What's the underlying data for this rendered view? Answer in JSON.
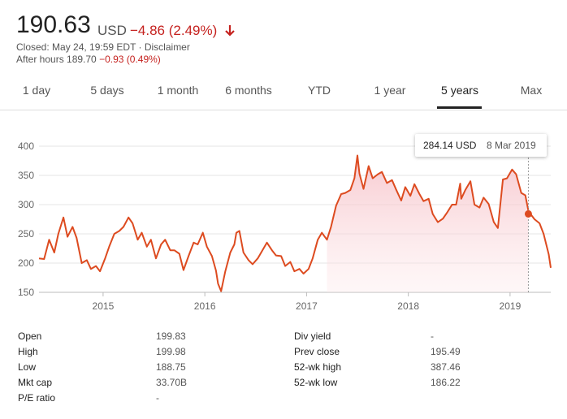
{
  "header": {
    "price": "190.63",
    "currency": "USD",
    "change": "−4.86 (2.49%)",
    "closed": "Closed: May 24, 19:59 EDT · Disclaimer",
    "after_hours_label": "After hours 189.70",
    "after_hours_change": "−0.93 (0.49%)"
  },
  "tabs": [
    {
      "label": "1 day"
    },
    {
      "label": "5 days"
    },
    {
      "label": "1 month"
    },
    {
      "label": "6 months"
    },
    {
      "label": "YTD"
    },
    {
      "label": "1 year"
    },
    {
      "label": "5 years",
      "active": true
    },
    {
      "label": "Max"
    }
  ],
  "tooltip": {
    "price": "284.14 USD",
    "date": "8 Mar 2019"
  },
  "chart_data": {
    "type": "area",
    "x_range": [
      2014.37,
      2019.4
    ],
    "ylim": [
      150,
      400
    ],
    "y_ticks": [
      "400",
      "350",
      "300",
      "250",
      "200",
      "150"
    ],
    "x_ticks": [
      "2015",
      "2016",
      "2017",
      "2018",
      "2019"
    ],
    "x_tick_values": [
      2015,
      2016,
      2017,
      2018,
      2019
    ],
    "grid": true,
    "color": "#dd4b20",
    "highlight": {
      "x": 2019.18,
      "y": 284.14
    },
    "series": [
      {
        "x": [
          2014.37,
          2014.42,
          2014.47,
          2014.52,
          2014.56,
          2014.61,
          2014.65,
          2014.7,
          2014.74,
          2014.79,
          2014.84,
          2014.88,
          2014.93,
          2014.97,
          2015.02,
          2015.06,
          2015.11,
          2015.16,
          2015.2,
          2015.25,
          2015.29,
          2015.34,
          2015.38,
          2015.43,
          2015.47,
          2015.52,
          2015.57,
          2015.61,
          2015.66,
          2015.7,
          2015.75,
          2015.79,
          2015.84,
          2015.89,
          2015.93,
          2015.98,
          2016.02,
          2016.07,
          2016.11,
          2016.13,
          2016.16,
          2016.2,
          2016.25,
          2016.29,
          2016.31,
          2016.34,
          2016.38,
          2016.43,
          2016.47,
          2016.52,
          2016.56,
          2016.61,
          2016.66,
          2016.7,
          2016.75,
          2016.79,
          2016.84,
          2016.88,
          2016.93,
          2016.97,
          2017.02,
          2017.06,
          2017.11,
          2017.15,
          2017.2,
          2017.24,
          2017.29,
          2017.34,
          2017.38,
          2017.43,
          2017.47,
          2017.5,
          2017.52,
          2017.56,
          2017.61,
          2017.65,
          2017.7,
          2017.74,
          2017.79,
          2017.84,
          2017.88,
          2017.93,
          2017.97,
          2018.02,
          2018.06,
          2018.11,
          2018.15,
          2018.2,
          2018.24,
          2018.29,
          2018.34,
          2018.38,
          2018.43,
          2018.47,
          2018.51,
          2018.52,
          2018.56,
          2018.61,
          2018.65,
          2018.7,
          2018.74,
          2018.79,
          2018.84,
          2018.88,
          2018.93,
          2018.97,
          2019.02,
          2019.06,
          2019.11,
          2019.15,
          2019.18,
          2019.2,
          2019.24,
          2019.29,
          2019.33,
          2019.38,
          2019.4
        ],
        "y": [
          208,
          207,
          240,
          218,
          250,
          278,
          245,
          262,
          243,
          200,
          205,
          190,
          195,
          186,
          208,
          228,
          250,
          255,
          262,
          278,
          268,
          240,
          252,
          228,
          240,
          208,
          232,
          240,
          222,
          222,
          216,
          188,
          212,
          235,
          232,
          252,
          228,
          212,
          187,
          165,
          152,
          185,
          218,
          232,
          252,
          255,
          218,
          205,
          198,
          208,
          220,
          235,
          222,
          213,
          212,
          195,
          202,
          186,
          190,
          182,
          190,
          208,
          240,
          252,
          240,
          262,
          298,
          318,
          320,
          325,
          345,
          384,
          353,
          327,
          366,
          345,
          352,
          356,
          337,
          342,
          326,
          307,
          330,
          315,
          335,
          318,
          306,
          310,
          284,
          270,
          276,
          286,
          300,
          300,
          336,
          310,
          325,
          340,
          300,
          295,
          312,
          301,
          270,
          260,
          343,
          345,
          360,
          352,
          320,
          316,
          290,
          284,
          275,
          268,
          250,
          215,
          192
        ]
      }
    ]
  },
  "stats": {
    "left": [
      {
        "label": "Open",
        "value": "199.83"
      },
      {
        "label": "High",
        "value": "199.98"
      },
      {
        "label": "Low",
        "value": "188.75"
      },
      {
        "label": "Mkt cap",
        "value": "33.70B"
      },
      {
        "label": "P/E ratio",
        "value": "-"
      }
    ],
    "right": [
      {
        "label": "Div yield",
        "value": "-"
      },
      {
        "label": "Prev close",
        "value": "195.49"
      },
      {
        "label": "52-wk high",
        "value": "387.46"
      },
      {
        "label": "52-wk low",
        "value": "186.22"
      }
    ]
  }
}
